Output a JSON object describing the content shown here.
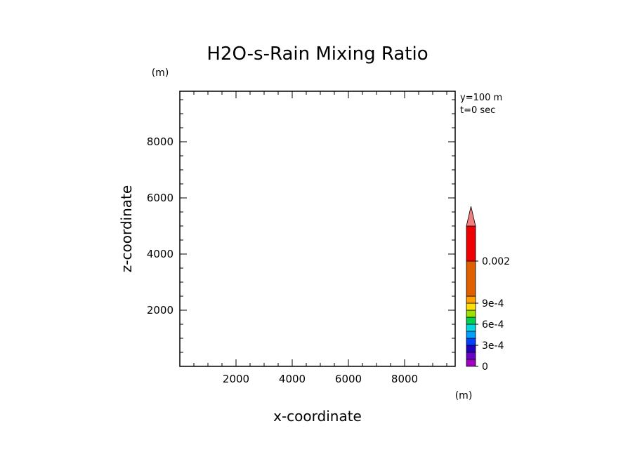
{
  "chart_data": {
    "type": "heatmap",
    "title": "H2O-s-Rain Mixing Ratio",
    "xlabel": "x-coordinate",
    "ylabel": "z-coordinate",
    "x_unit": "(m)",
    "y_unit": "(m)",
    "xlim": [
      0,
      9800
    ],
    "ylim": [
      0,
      9800
    ],
    "x_ticks": [
      2000,
      4000,
      6000,
      8000
    ],
    "y_ticks": [
      2000,
      4000,
      6000,
      8000
    ],
    "x_tick_labels": [
      "2000",
      "4000",
      "6000",
      "8000"
    ],
    "y_tick_labels": [
      "2000",
      "4000",
      "6000",
      "8000"
    ],
    "minor_tick_step": 500,
    "annotations": [
      "y=100 m",
      "t=0 sec"
    ],
    "field_values": [],
    "colorbar": {
      "levels": [
        "0",
        "1e-4",
        "2e-4",
        "3e-4",
        "4e-4",
        "5e-4",
        "6e-4",
        "7e-4",
        "8e-4",
        "9e-4",
        "0.0015",
        "0.002"
      ],
      "colors": [
        "#a000c0",
        "#6a00c8",
        "#1e00c0",
        "#0040ff",
        "#00a0ff",
        "#00d8e0",
        "#00d050",
        "#a0e000",
        "#ffe000",
        "#ffa000",
        "#e06000",
        "#ee0000",
        "#f08080"
      ],
      "tick_labels": [
        {
          "label": "0",
          "level_index": 0
        },
        {
          "label": "3e-4",
          "level_index": 3
        },
        {
          "label": "6e-4",
          "level_index": 6
        },
        {
          "label": "9e-4",
          "level_index": 9
        },
        {
          "label": "0.002",
          "level_index": 11
        }
      ],
      "extend": "max"
    }
  }
}
